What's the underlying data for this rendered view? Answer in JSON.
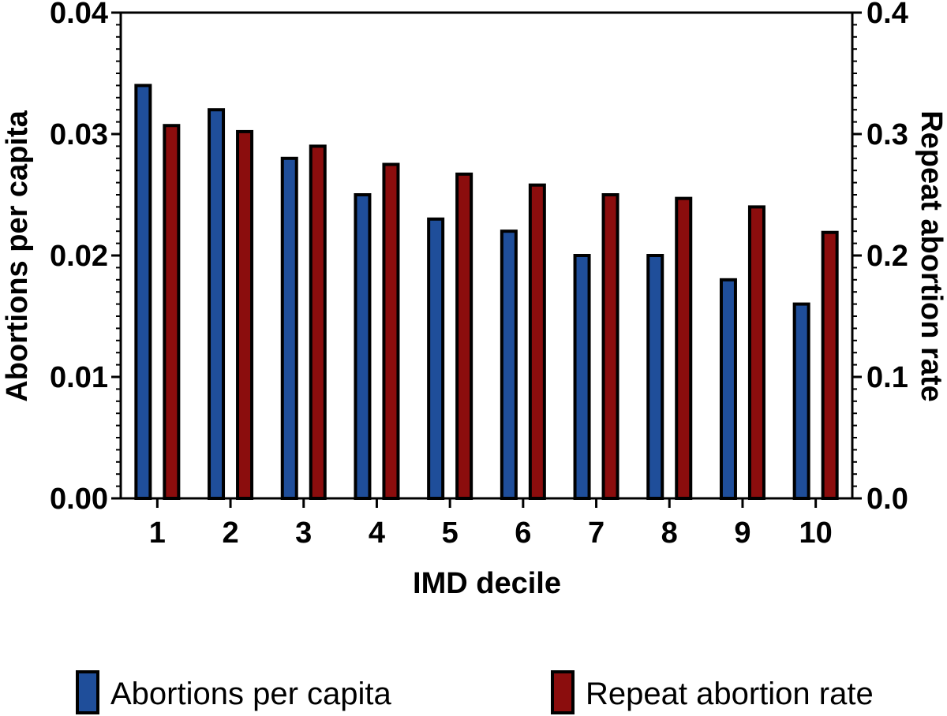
{
  "chart_data": {
    "type": "bar",
    "title": "",
    "xlabel": "IMD decile",
    "ylabel_left": "Abortions per capita",
    "ylabel_right": "Repeat abortion rate",
    "categories": [
      "1",
      "2",
      "3",
      "4",
      "5",
      "6",
      "7",
      "8",
      "9",
      "10"
    ],
    "series": [
      {
        "name": "Abortions per capita",
        "axis": "left",
        "color": "#1f4e9a",
        "values": [
          0.034,
          0.032,
          0.028,
          0.025,
          0.023,
          0.022,
          0.02,
          0.02,
          0.018,
          0.016
        ]
      },
      {
        "name": "Repeat abortion rate",
        "axis": "right",
        "color": "#8b0d0d",
        "values": [
          0.307,
          0.302,
          0.29,
          0.275,
          0.267,
          0.258,
          0.25,
          0.247,
          0.24,
          0.219
        ]
      }
    ],
    "ylim_left": [
      0,
      0.04
    ],
    "ylim_right": [
      0,
      0.4
    ],
    "yticks_left": [
      "0.00",
      "0.01",
      "0.02",
      "0.03",
      "0.04"
    ],
    "yticks_right": [
      "0.0",
      "0.1",
      "0.2",
      "0.3",
      "0.4"
    ],
    "grid": false,
    "legend_position": "bottom"
  }
}
